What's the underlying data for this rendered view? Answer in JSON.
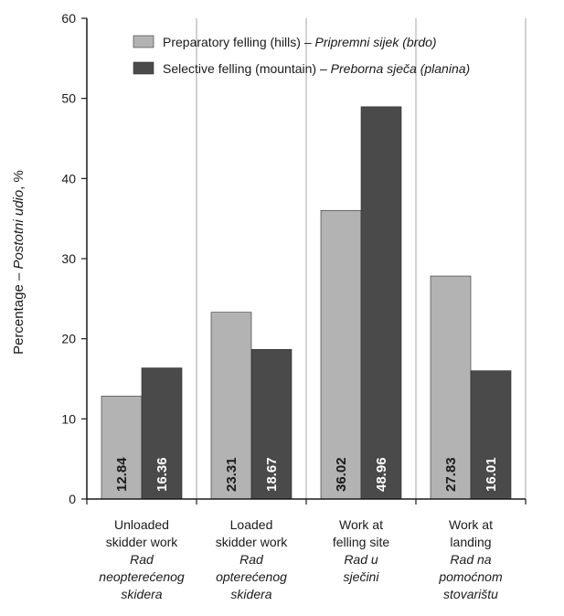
{
  "chart_data": {
    "type": "bar",
    "ylabel_plain": "Percentage – ",
    "ylabel_italic": "Postotni udio",
    "ylabel_unit": ", %",
    "ylim": [
      0,
      60
    ],
    "yticks": [
      "0",
      "10",
      "20",
      "30",
      "40",
      "50",
      "60"
    ],
    "grid": "vertical separators between categories",
    "legend_position": "top",
    "categories": [
      {
        "lines": [
          "Unloaded",
          "skidder work"
        ],
        "italic_lines": [
          "Rad",
          "neopterećenog",
          "skidera"
        ]
      },
      {
        "lines": [
          "Loaded",
          "skidder work"
        ],
        "italic_lines": [
          "Rad",
          "opterećenog",
          "skidera"
        ]
      },
      {
        "lines": [
          "Work at",
          "felling site"
        ],
        "italic_lines": [
          "Rad u",
          "sječini"
        ]
      },
      {
        "lines": [
          "Work at",
          "landing"
        ],
        "italic_lines": [
          "Rad na",
          "pomoćnom",
          "stovarištu"
        ]
      }
    ],
    "series": [
      {
        "name_plain": "Preparatory felling (hills) – ",
        "name_italic": "Pripremni sijek (brdo)",
        "color": "#b3b3b3",
        "label_color": "#1a1a1a",
        "values": [
          12.84,
          23.31,
          36.02,
          27.83
        ],
        "value_labels": [
          "12.84",
          "23.31",
          "36.02",
          "27.83"
        ]
      },
      {
        "name_plain": "Selective felling (mountain) – ",
        "name_italic": "Preborna sječa (planina)",
        "color": "#4a4a4a",
        "label_color": "#ffffff",
        "values": [
          16.36,
          18.67,
          48.96,
          16.01
        ],
        "value_labels": [
          "16.36",
          "18.67",
          "48.96",
          "16.01"
        ]
      }
    ]
  }
}
